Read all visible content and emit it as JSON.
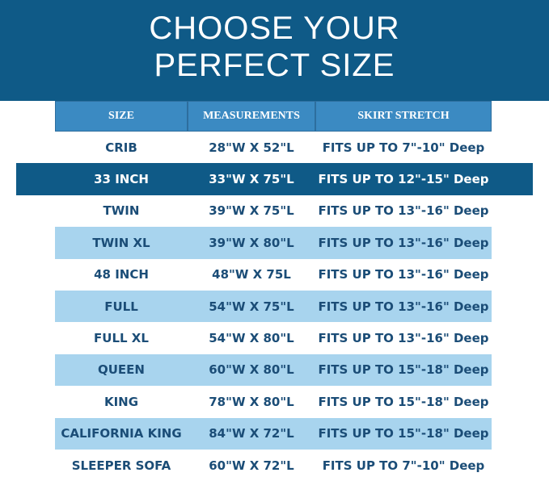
{
  "header": {
    "title": [
      "CHOOSE YOUR",
      "PERFECT SIZE"
    ]
  },
  "table": {
    "columns": [
      "SIZE",
      "MEASUREMENTS",
      "SKIRT STRETCH"
    ],
    "rows": [
      [
        "CRIB",
        "28\"W X 52\"L",
        "FITS UP TO 7\"-10\" Deep"
      ],
      [
        "33 INCH",
        "33\"W X 75\"L",
        "FITS UP TO 12\"-15\" Deep"
      ],
      [
        "TWIN",
        "39\"W X 75\"L",
        "FITS UP TO 13\"-16\" Deep"
      ],
      [
        "TWIN XL",
        "39\"W X 80\"L",
        "FITS UP TO 13\"-16\" Deep"
      ],
      [
        "48 INCH",
        "48\"W X 75L",
        "FITS UP TO 13\"-16\" Deep"
      ],
      [
        "FULL",
        "54\"W X 75\"L",
        "FITS UP TO 13\"-16\" Deep"
      ],
      [
        "FULL XL",
        "54\"W X 80\"L",
        "FITS UP TO 13\"-16\" Deep"
      ],
      [
        "QUEEN",
        "60\"W X 80\"L",
        "FITS UP TO 15\"-18\" Deep"
      ],
      [
        "KING",
        "78\"W X 80\"L",
        "FITS UP TO 15\"-18\" Deep"
      ],
      [
        "CALIFORNIA KING",
        "84\"W X 72\"L",
        "FITS UP TO 15\"-18\" Deep"
      ],
      [
        "SLEEPER SOFA",
        "60\"W X 72\"L",
        "FITS UP TO 7\"-10\" Deep"
      ]
    ]
  }
}
